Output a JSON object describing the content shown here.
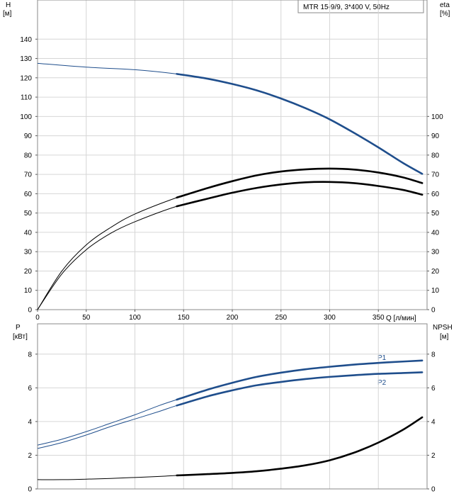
{
  "chart_data": [
    {
      "type": "line",
      "title_box": "MTR 15-9/9, 3*400 V, 50Hz",
      "xlabel": "Q [л/мин]",
      "ylabel_left": [
        "H",
        "[м]"
      ],
      "ylabel_right": [
        "eta",
        "[%]"
      ],
      "xlim": [
        0,
        400
      ],
      "ylim_left": [
        0,
        150
      ],
      "ylim_right": [
        0,
        150
      ],
      "x_ticks": [
        "0",
        "50",
        "100",
        "150",
        "200",
        "250",
        "300",
        "350"
      ],
      "y_ticks_left": [
        "0",
        "10",
        "20",
        "30",
        "40",
        "50",
        "60",
        "70",
        "80",
        "90",
        "100",
        "110",
        "120",
        "130",
        "140"
      ],
      "y_ticks_right": [
        "0",
        "10",
        "20",
        "30",
        "40",
        "50",
        "60",
        "70",
        "80",
        "90",
        "100"
      ],
      "grid": true,
      "series": [
        {
          "axis": "left",
          "color": "#1f4e8c",
          "x": [
            0,
            50,
            100,
            143,
            175,
            200,
            225,
            250,
            275,
            300,
            325,
            350,
            375,
            395
          ],
          "y": [
            127.5,
            125.5,
            124.2,
            122,
            119.5,
            116.8,
            113.5,
            109.3,
            104.3,
            98.5,
            91.5,
            84,
            76,
            70.3
          ],
          "highlight_from": 143
        },
        {
          "axis": "right",
          "color": "#000000",
          "x": [
            0,
            25,
            50,
            75,
            100,
            143,
            175,
            200,
            225,
            250,
            275,
            300,
            325,
            350,
            375,
            395
          ],
          "y": [
            0,
            20,
            33.5,
            42.5,
            49.5,
            58,
            63,
            66.5,
            69.5,
            71.5,
            72.6,
            73,
            72.5,
            71,
            68.5,
            65.5
          ],
          "highlight_from": 143
        },
        {
          "axis": "right",
          "color": "#000000",
          "x": [
            0,
            25,
            50,
            75,
            100,
            143,
            175,
            200,
            225,
            250,
            275,
            300,
            325,
            350,
            375,
            395
          ],
          "y": [
            0,
            18.5,
            31,
            39.5,
            45.5,
            53.5,
            57.5,
            60.5,
            63,
            64.8,
            65.9,
            66.1,
            65.5,
            64,
            62,
            59.5
          ],
          "highlight_from": 143
        }
      ]
    },
    {
      "type": "line",
      "ylabel_left": [
        "P",
        "[кВт]"
      ],
      "ylabel_right": [
        "NPSH",
        "[м]"
      ],
      "xlim": [
        0,
        400
      ],
      "ylim_left": [
        0,
        9.8
      ],
      "ylim_right": [
        0,
        9.8
      ],
      "y_ticks_left": [
        "0",
        "2",
        "4",
        "6",
        "8"
      ],
      "y_ticks_right": [
        "0",
        "2",
        "4",
        "6",
        "8"
      ],
      "grid": true,
      "series": [
        {
          "name": "P1",
          "axis": "left",
          "color": "#1f4e8c",
          "x": [
            0,
            25,
            50,
            75,
            100,
            125,
            143,
            175,
            200,
            225,
            250,
            275,
            300,
            325,
            350,
            375,
            395
          ],
          "y": [
            2.6,
            2.95,
            3.4,
            3.9,
            4.4,
            4.95,
            5.3,
            5.9,
            6.3,
            6.65,
            6.9,
            7.1,
            7.25,
            7.38,
            7.48,
            7.56,
            7.62
          ],
          "highlight_from": 143
        },
        {
          "name": "P2",
          "axis": "left",
          "color": "#1f4e8c",
          "x": [
            0,
            25,
            50,
            75,
            100,
            125,
            143,
            175,
            200,
            225,
            250,
            275,
            300,
            325,
            350,
            375,
            395
          ],
          "y": [
            2.4,
            2.75,
            3.2,
            3.7,
            4.15,
            4.6,
            4.95,
            5.5,
            5.85,
            6.15,
            6.35,
            6.52,
            6.65,
            6.75,
            6.83,
            6.88,
            6.92
          ],
          "highlight_from": 143
        },
        {
          "axis": "right",
          "color": "#000000",
          "x": [
            0,
            25,
            50,
            75,
            100,
            125,
            143,
            175,
            200,
            225,
            250,
            275,
            300,
            325,
            350,
            375,
            395
          ],
          "y": [
            0.55,
            0.55,
            0.58,
            0.62,
            0.68,
            0.74,
            0.8,
            0.88,
            0.95,
            1.05,
            1.2,
            1.4,
            1.7,
            2.15,
            2.75,
            3.5,
            4.25
          ],
          "highlight_from": 143
        }
      ]
    }
  ]
}
